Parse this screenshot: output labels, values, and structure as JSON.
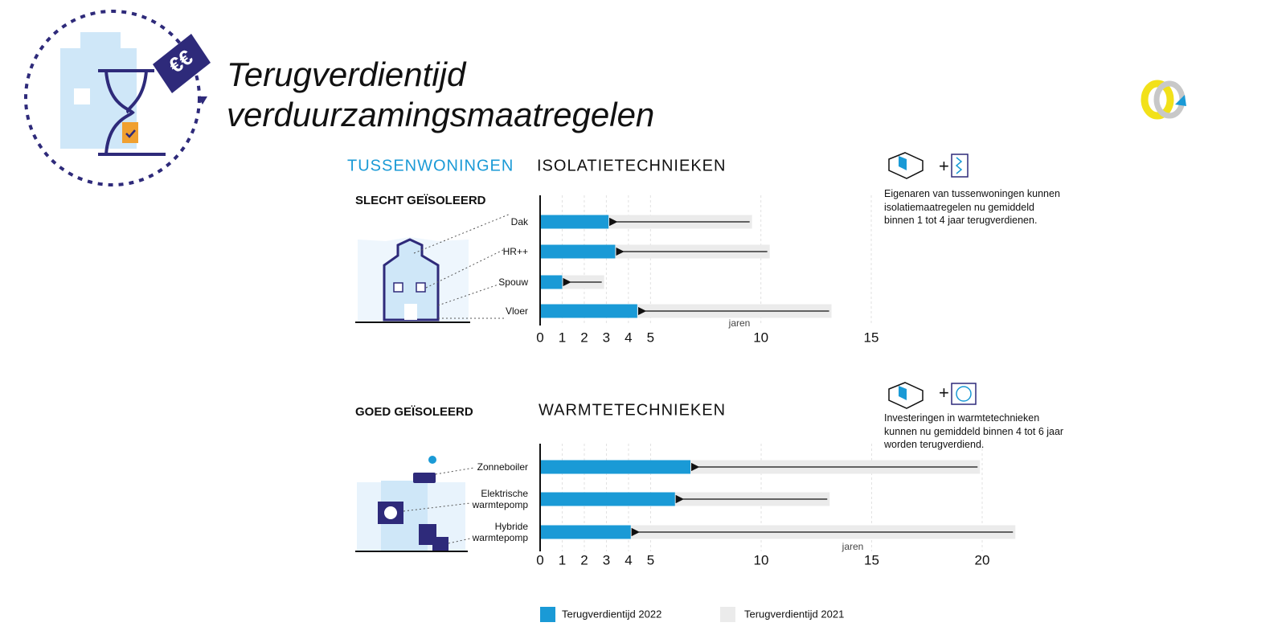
{
  "header": {
    "title": [
      "Terugverdientijd",
      "verduurzamingsmaatregelen"
    ],
    "section": "TUSSENWONINGEN",
    "price_tag": "€€"
  },
  "chart_data": [
    {
      "type": "bar",
      "orientation": "horizontal",
      "title": "ISOLATIETECHNIEKEN",
      "subtitle": "SLECHT GEÏSOLEERD",
      "annotation": "Eigenaren van tussenwoningen kunnen isolatiemaatregelen nu gemiddeld binnen 1 tot 4 jaar terugverdienen.",
      "x_label": "jaren",
      "categories": [
        "Dak",
        "HR++",
        "Spouw",
        "Vloer"
      ],
      "series": [
        {
          "name": "Terugverdientijd 2022",
          "color": "#1a9ad6",
          "values": [
            3.1,
            3.4,
            1.0,
            4.4
          ]
        },
        {
          "name": "Terugverdientijd 2021",
          "color": "#ebebeb",
          "values": [
            9.6,
            10.4,
            2.9,
            13.2
          ]
        }
      ],
      "xlim": [
        0,
        15
      ],
      "xticks": [
        0,
        1,
        2,
        3,
        4,
        5,
        10,
        15
      ],
      "grid": true
    },
    {
      "type": "bar",
      "orientation": "horizontal",
      "title": "WARMTETECHNIEKEN",
      "subtitle": "GOED GEÏSOLEERD",
      "annotation": "Investeringen in warmtetechnieken kunnen nu gemiddeld binnen 4 tot 6 jaar worden terugverdiend.",
      "x_label": "jaren",
      "categories": [
        "Zonneboiler",
        "Elektrische warmtepomp",
        "Hybride warmtepomp"
      ],
      "series": [
        {
          "color": "#1a9ad6",
          "values": [
            6.8,
            6.1,
            4.1
          ]
        },
        {
          "color": "#ebebeb",
          "values": [
            19.9,
            13.1,
            21.5
          ]
        }
      ],
      "xlim": [
        0,
        22
      ],
      "xticks": [
        0,
        1,
        2,
        3,
        4,
        5,
        10,
        15,
        20
      ],
      "grid": true
    }
  ]
}
